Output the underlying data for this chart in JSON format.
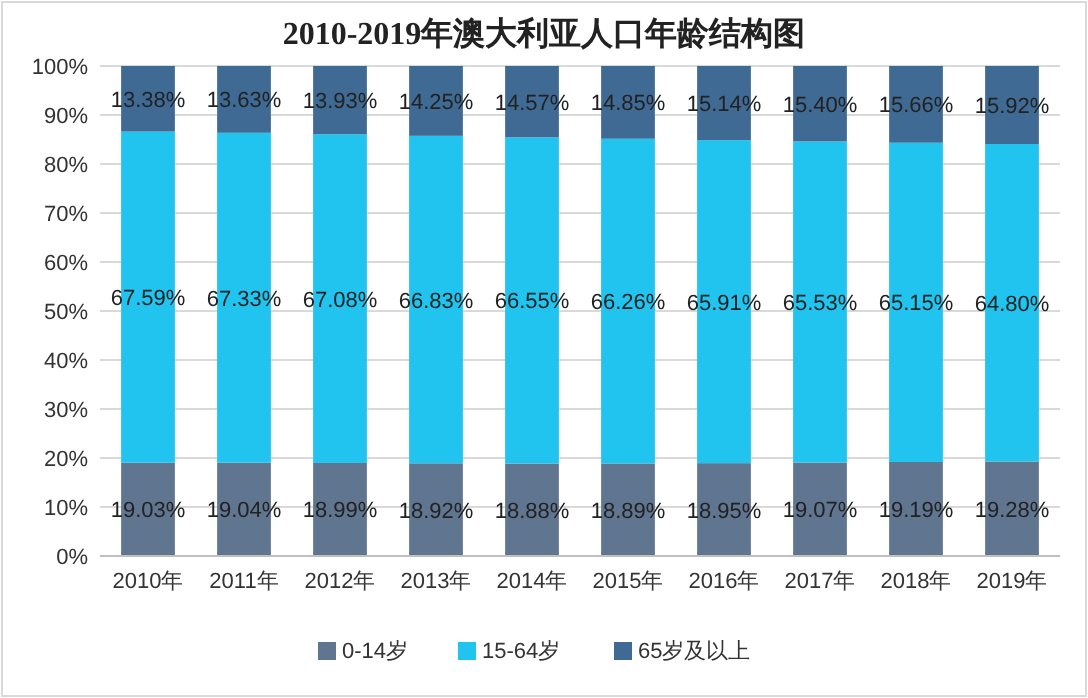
{
  "chart_data": {
    "type": "bar",
    "title": "2010-2019年澳大利亚人口年龄结构图",
    "stacked": true,
    "categories": [
      "2010年",
      "2011年",
      "2012年",
      "2013年",
      "2014年",
      "2015年",
      "2016年",
      "2017年",
      "2018年",
      "2019年"
    ],
    "series": [
      {
        "name": "0-14岁",
        "color": "#607590",
        "values": [
          19.03,
          19.04,
          18.99,
          18.92,
          18.88,
          18.89,
          18.95,
          19.07,
          19.19,
          19.28
        ],
        "value_labels": [
          "19.03%",
          "19.04%",
          "18.99%",
          "18.92%",
          "18.88%",
          "18.89%",
          "18.95%",
          "19.07%",
          "19.19%",
          "19.28%"
        ]
      },
      {
        "name": "15-64岁",
        "color": "#20c4ef",
        "values": [
          67.59,
          67.33,
          67.08,
          66.83,
          66.55,
          66.26,
          65.91,
          65.53,
          65.15,
          64.8
        ],
        "value_labels": [
          "67.59%",
          "67.33%",
          "67.08%",
          "66.83%",
          "66.55%",
          "66.26%",
          "65.91%",
          "65.53%",
          "65.15%",
          "64.80%"
        ]
      },
      {
        "name": "65岁及以上",
        "color": "#3f6a94",
        "values": [
          13.38,
          13.63,
          13.93,
          14.25,
          14.57,
          14.85,
          15.14,
          15.4,
          15.66,
          15.92
        ],
        "value_labels": [
          "13.38%",
          "13.63%",
          "13.93%",
          "14.25%",
          "14.57%",
          "14.85%",
          "15.14%",
          "15.40%",
          "15.66%",
          "15.92%"
        ]
      }
    ],
    "ylim": [
      0,
      100
    ],
    "yticks": [
      {
        "value": 0,
        "label": "0%"
      },
      {
        "value": 10,
        "label": "10%"
      },
      {
        "value": 20,
        "label": "20%"
      },
      {
        "value": 30,
        "label": "30%"
      },
      {
        "value": 40,
        "label": "40%"
      },
      {
        "value": 50,
        "label": "50%"
      },
      {
        "value": 60,
        "label": "60%"
      },
      {
        "value": 70,
        "label": "70%"
      },
      {
        "value": 80,
        "label": "80%"
      },
      {
        "value": 90,
        "label": "90%"
      },
      {
        "value": 100,
        "label": "100%"
      }
    ],
    "grid": "y",
    "legend": "bottom"
  }
}
